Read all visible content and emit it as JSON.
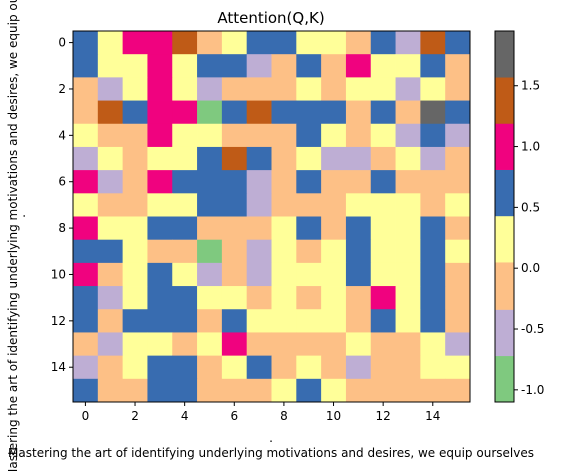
{
  "chart_data": {
    "type": "heatmap",
    "title": "Attention(Q,K)",
    "xlabel": "Mastering the art of identifying underlying motivations and desires, we equip ourselves",
    "ylabel": "Mastering the art of identifying underlying motivations and desires, we equip ourselves",
    "x_sublabel": ".",
    "y_sublabel": ".",
    "x_ticks": [
      "0",
      "2",
      "4",
      "6",
      "8",
      "10",
      "12",
      "14"
    ],
    "y_ticks": [
      "0",
      "2",
      "4",
      "6",
      "8",
      "10",
      "12",
      "14"
    ],
    "colorbar_ticks": [
      "-1.0",
      "-0.5",
      "0.0",
      "0.5",
      "1.0",
      "1.5"
    ],
    "colorbar_range": [
      -1.1,
      1.95
    ],
    "colorbar_bins": [
      {
        "from": -1.1,
        "to": -0.72,
        "color": "#7fc97f"
      },
      {
        "from": -0.72,
        "to": -0.34,
        "color": "#beaed4"
      },
      {
        "from": -0.34,
        "to": 0.05,
        "color": "#fdc086"
      },
      {
        "from": 0.05,
        "to": 0.43,
        "color": "#ffff99"
      },
      {
        "from": 0.43,
        "to": 0.81,
        "color": "#386cb0"
      },
      {
        "from": 0.81,
        "to": 1.19,
        "color": "#f0027f"
      },
      {
        "from": 1.19,
        "to": 1.57,
        "color": "#bf5b17"
      },
      {
        "from": 1.57,
        "to": 1.95,
        "color": "#666666"
      }
    ],
    "grid": false,
    "rows": 16,
    "cols": 16,
    "values": [
      [
        0.6,
        0.2,
        1.0,
        1.0,
        1.4,
        -0.1,
        0.2,
        0.6,
        0.6,
        0.2,
        0.2,
        -0.1,
        0.6,
        -0.5,
        1.4,
        0.6
      ],
      [
        0.6,
        0.2,
        0.2,
        1.0,
        0.2,
        0.6,
        0.6,
        -0.5,
        -0.1,
        0.6,
        -0.1,
        1.0,
        0.2,
        0.2,
        0.6,
        -0.1
      ],
      [
        -0.1,
        -0.5,
        0.2,
        1.0,
        0.2,
        -0.5,
        -0.1,
        -0.1,
        -0.1,
        0.2,
        -0.1,
        0.2,
        0.2,
        -0.5,
        0.2,
        -0.1
      ],
      [
        -0.1,
        1.4,
        0.6,
        1.0,
        1.0,
        -0.9,
        0.6,
        1.4,
        0.6,
        0.6,
        0.6,
        -0.1,
        0.6,
        -0.1,
        1.8,
        0.6
      ],
      [
        0.2,
        -0.1,
        -0.1,
        1.0,
        0.2,
        0.2,
        -0.1,
        -0.1,
        -0.1,
        0.6,
        0.2,
        -0.1,
        0.2,
        -0.5,
        0.6,
        -0.5
      ],
      [
        -0.5,
        0.2,
        -0.1,
        0.2,
        0.2,
        0.6,
        1.4,
        0.6,
        -0.1,
        0.2,
        -0.5,
        -0.5,
        -0.1,
        0.2,
        -0.5,
        -0.1
      ],
      [
        1.0,
        -0.5,
        -0.1,
        1.0,
        0.6,
        0.6,
        0.6,
        -0.5,
        -0.1,
        0.6,
        -0.1,
        -0.1,
        0.6,
        -0.1,
        -0.1,
        -0.1
      ],
      [
        0.2,
        -0.1,
        -0.1,
        0.2,
        0.2,
        0.6,
        0.6,
        -0.5,
        -0.1,
        -0.1,
        -0.1,
        0.2,
        0.2,
        0.2,
        -0.1,
        0.2
      ],
      [
        1.0,
        0.2,
        0.2,
        0.6,
        0.6,
        -0.1,
        -0.1,
        -0.1,
        0.2,
        0.6,
        -0.1,
        0.6,
        0.2,
        0.2,
        0.6,
        -0.1
      ],
      [
        0.6,
        0.6,
        0.2,
        -0.1,
        -0.1,
        -0.9,
        -0.1,
        -0.5,
        0.2,
        -0.1,
        0.2,
        0.6,
        0.2,
        0.2,
        0.6,
        0.2
      ],
      [
        1.0,
        -0.1,
        0.2,
        0.6,
        0.2,
        -0.5,
        -0.1,
        -0.5,
        0.2,
        0.2,
        0.2,
        0.6,
        0.2,
        0.2,
        0.6,
        -0.1
      ],
      [
        0.6,
        -0.5,
        0.2,
        0.6,
        0.6,
        0.2,
        0.2,
        -0.1,
        0.2,
        -0.1,
        0.2,
        -0.1,
        1.0,
        0.2,
        0.6,
        -0.1
      ],
      [
        0.6,
        -0.1,
        0.6,
        0.6,
        0.6,
        -0.1,
        0.6,
        0.2,
        0.2,
        0.2,
        0.2,
        -0.1,
        0.6,
        0.2,
        0.6,
        -0.1
      ],
      [
        -0.1,
        -0.5,
        0.2,
        0.2,
        -0.1,
        0.2,
        1.0,
        -0.1,
        -0.1,
        -0.1,
        -0.1,
        0.2,
        -0.1,
        -0.1,
        0.2,
        -0.5
      ],
      [
        -0.5,
        -0.1,
        0.2,
        0.6,
        0.6,
        -0.1,
        0.2,
        0.6,
        -0.1,
        0.2,
        -0.1,
        -0.5,
        -0.1,
        -0.1,
        0.2,
        0.2
      ],
      [
        0.6,
        -0.1,
        -0.1,
        0.6,
        0.6,
        -0.1,
        -0.1,
        -0.1,
        0.2,
        0.6,
        0.2,
        -0.1,
        -0.1,
        -0.1,
        -0.1,
        -0.1
      ]
    ]
  }
}
